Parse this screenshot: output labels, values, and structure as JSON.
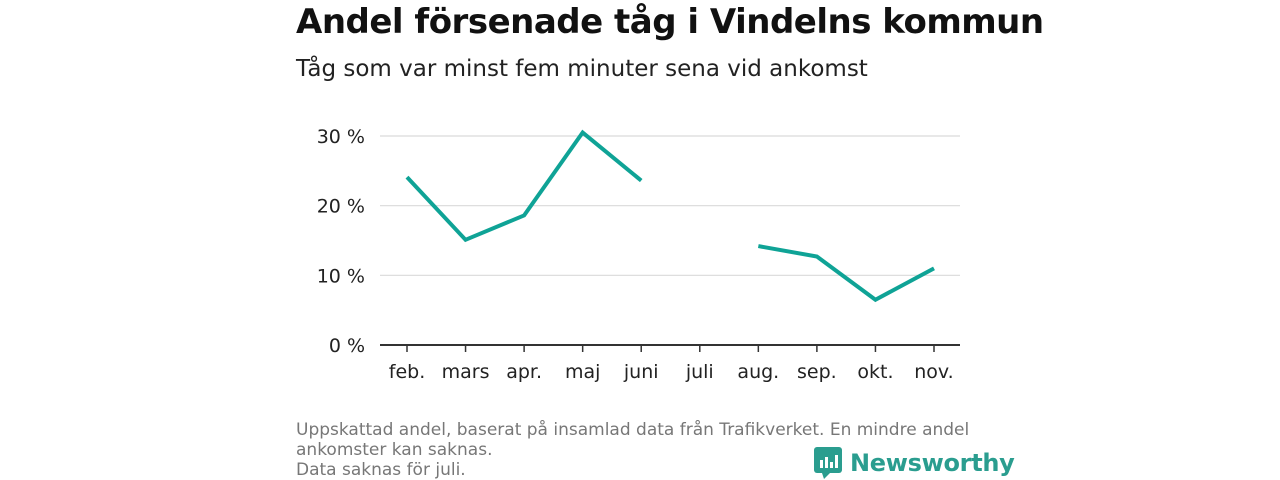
{
  "header": {
    "title": "Andel försenade tåg i Vindelns kommun",
    "subtitle": "Tåg som var minst fem minuter sena vid ankomst"
  },
  "footer": {
    "note_line1": "Uppskattad andel, baserat på insamlad data från Trafikverket. En mindre andel",
    "note_line2": "ankomster kan saknas.",
    "note_line3": "Data saknas för juli.",
    "brand_name": "Newsworthy",
    "brand_icon": "newsworthy-logo-icon"
  },
  "colors": {
    "line": "#0fa396",
    "brand": "#2a9d8f",
    "grid": "#d9d9d9",
    "axis": "#333333"
  },
  "chart_data": {
    "type": "line",
    "categories": [
      "feb.",
      "mars",
      "apr.",
      "maj",
      "juni",
      "juli",
      "aug.",
      "sep.",
      "okt.",
      "nov."
    ],
    "series": [
      {
        "values": [
          24.1,
          15.1,
          18.6,
          30.5,
          23.6,
          null,
          14.2,
          12.7,
          6.5,
          11.0
        ]
      }
    ],
    "y_ticks": [
      0,
      10,
      20,
      30
    ],
    "y_tick_labels": [
      "0 %",
      "10 %",
      "20 %",
      "30 %"
    ],
    "ylim": [
      0,
      30
    ],
    "grid": true
  }
}
